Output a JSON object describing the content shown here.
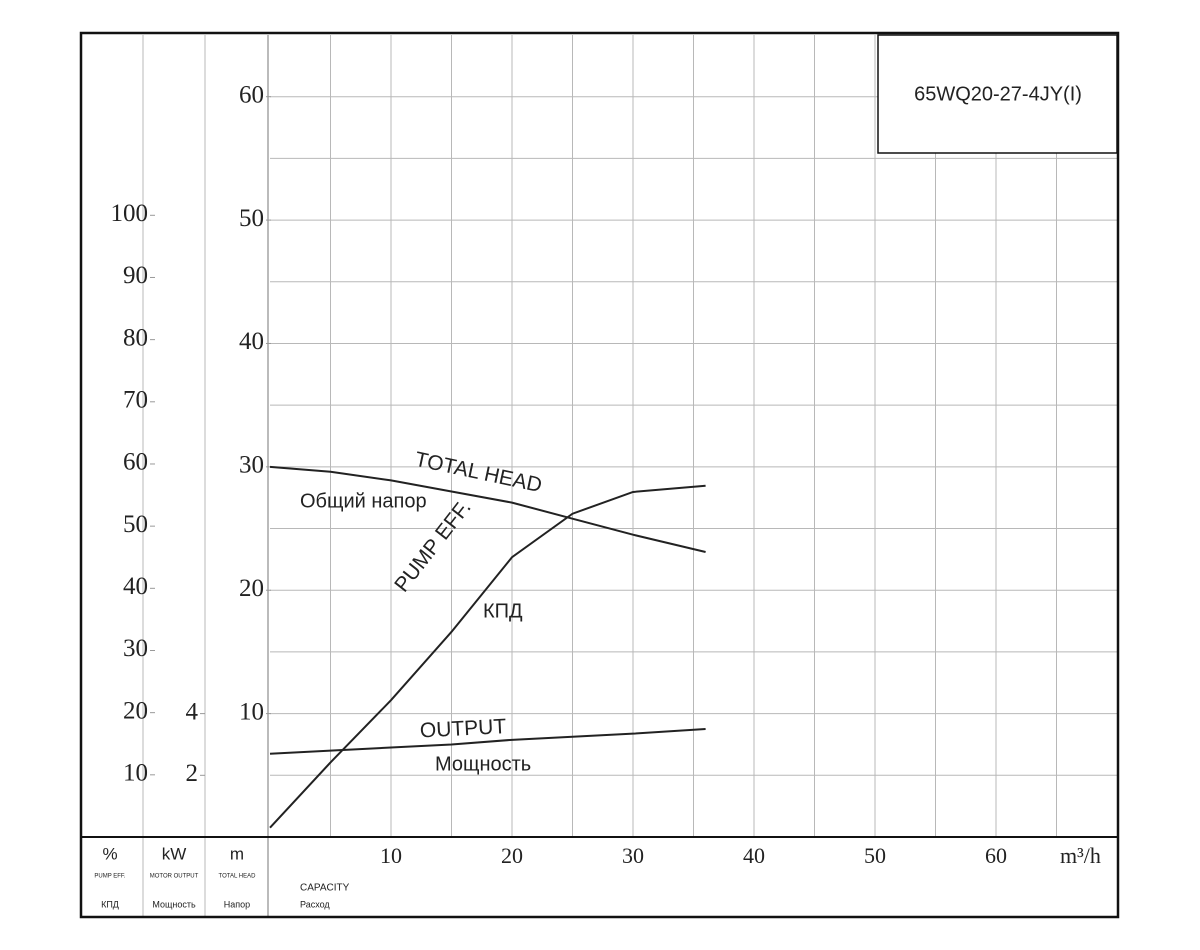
{
  "chart_data": {
    "type": "line",
    "title": "65WQ20-27-4JY(I)",
    "x": [
      0,
      5,
      10,
      15,
      20,
      25,
      30,
      36
    ],
    "xlim": [
      0,
      70
    ],
    "xticks": [
      10,
      20,
      30,
      40,
      50,
      60
    ],
    "xminor": [
      5,
      15,
      25,
      35,
      45,
      55,
      65
    ],
    "xunit": "m³/h",
    "xlabel": "CAPACITY",
    "xsublabel": "Расход",
    "axes": [
      {
        "unit": "%",
        "label": "PUMP EFF.",
        "sublabel": "КПД",
        "lim": [
          0,
          129
        ],
        "ticks": [
          10,
          20,
          30,
          40,
          50,
          60,
          70,
          80,
          90,
          100
        ]
      },
      {
        "unit": "kW",
        "label": "MOTOR OUTPUT",
        "sublabel": "Мощность",
        "lim": [
          0,
          26
        ],
        "ticks": [
          2,
          4
        ]
      },
      {
        "unit": "m",
        "label": "TOTAL HEAD",
        "sublabel": "Напор",
        "lim": [
          0,
          65
        ],
        "ticks": [
          10,
          20,
          30,
          40,
          50,
          60
        ],
        "minor": [
          5,
          15,
          25,
          35,
          45,
          55
        ]
      }
    ],
    "grid": true,
    "series": [
      {
        "name": "TOTAL HEAD",
        "name_ru": "Общий напор",
        "axis": 2,
        "color": "#222222",
        "values": [
          30,
          29.6,
          28.9,
          28.0,
          27.1,
          25.8,
          24.5,
          23.1
        ]
      },
      {
        "name": "PUMP EFF.",
        "name_ru": "КПД",
        "axis": 0,
        "color": "#222222",
        "values": [
          1.5,
          12,
          22,
          33,
          45,
          52,
          55.5,
          56.5
        ]
      },
      {
        "name": "OUTPUT",
        "name_ru": "Мощность",
        "axis": 1,
        "color": "#222222",
        "values": [
          2.7,
          2.8,
          2.9,
          3.0,
          3.15,
          3.25,
          3.35,
          3.5
        ]
      }
    ]
  }
}
